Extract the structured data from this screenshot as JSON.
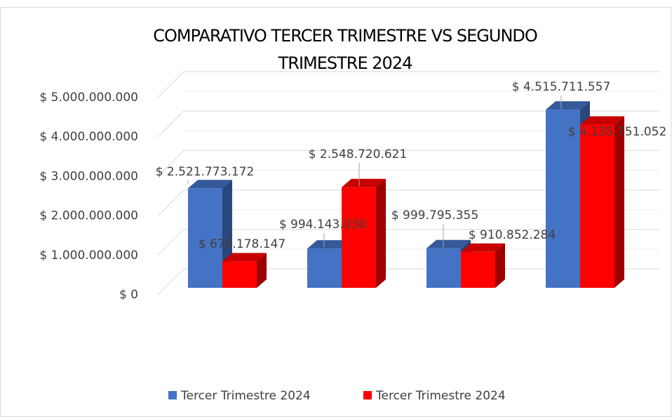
{
  "chart_data": {
    "type": "bar3d",
    "title": [
      "COMPARATIVO TERCER TRIMESTRE VS SEGUNDO",
      "TRIMESTRE 2024"
    ],
    "categories": [
      null,
      null,
      null,
      null
    ],
    "series": [
      {
        "name": "Tercer Trimestre 2024",
        "color": "#4472c4",
        "values": [
          2521773172,
          994143030,
          999795355,
          4515711557
        ],
        "value_labels": [
          "$ 2.521.773.172",
          "$ 994.143.030",
          "$ 999.795.355",
          "$ 4.515.711.557"
        ]
      },
      {
        "name": "Tercer Trimestre 2024",
        "color": "#ff0000",
        "values": [
          670178147,
          2548720621,
          910852284,
          4135751052
        ],
        "value_labels": [
          "$ 670.178.147",
          "$ 2.548.720.621",
          "$ 910.852.284",
          "$ 4.135.751.052"
        ]
      }
    ],
    "ylim": [
      0,
      5000000000
    ],
    "yticks": [
      {
        "value": 0,
        "label": "$ 0"
      },
      {
        "value": 1000000000,
        "label": "$ 1.000.000.000"
      },
      {
        "value": 2000000000,
        "label": "$ 2.000.000.000"
      },
      {
        "value": 3000000000,
        "label": "$ 3.000.000.000"
      },
      {
        "value": 4000000000,
        "label": "$ 4.000.000.000"
      },
      {
        "value": 5000000000,
        "label": "$ 5.000.000.000"
      }
    ],
    "grid": true,
    "legend": "bottom"
  }
}
